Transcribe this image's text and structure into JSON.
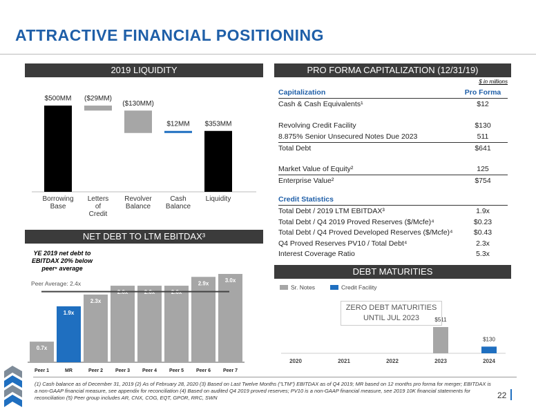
{
  "header": {
    "title": "ATTRACTIVE FINANCIAL POSITIONING"
  },
  "chart_data": [
    {
      "type": "waterfall",
      "title": "2019 LIQUIDITY",
      "categories": [
        "Borrowing Base",
        "Letters of Credit",
        "Revolver Balance",
        "Cash Balance",
        "Liquidity"
      ],
      "values": [
        500,
        -29,
        -130,
        12,
        353
      ],
      "value_labels": [
        "$500MM",
        "($29MM)",
        "($130MM)",
        "$12MM",
        "$353MM"
      ],
      "colors": [
        "#000000",
        "#a6a6a6",
        "#a6a6a6",
        "#1f6fc0",
        "#000000"
      ]
    },
    {
      "type": "bar",
      "title": "NET DEBT TO LTM EBITDAX³",
      "annotation": "YE 2019 net debt to EBITDAX 20% below peer⁵ average",
      "categories": [
        "Peer 1",
        "MR",
        "Peer 2",
        "Peer 3",
        "Peer 4",
        "Peer 5",
        "Peer 6",
        "Peer 7"
      ],
      "values": [
        0.7,
        1.9,
        2.3,
        2.6,
        2.6,
        2.6,
        2.9,
        3.0
      ],
      "value_labels": [
        "0.7x",
        "1.9x",
        "2.3x",
        "2.6x",
        "2.6x",
        "2.6x",
        "2.9x",
        "3.0x"
      ],
      "colors": [
        "#a6a6a6",
        "#1f6fc0",
        "#a6a6a6",
        "#a6a6a6",
        "#a6a6a6",
        "#a6a6a6",
        "#a6a6a6",
        "#a6a6a6"
      ],
      "reference_line": {
        "value": 2.4,
        "label": "Peer Average: 2.4x"
      }
    },
    {
      "type": "stacked-bar",
      "title": "DEBT MATURITIES",
      "annotation": "ZERO DEBT MATURITIES UNTIL JUL 2023",
      "categories": [
        "2020",
        "2021",
        "2022",
        "2023",
        "2024"
      ],
      "series": [
        {
          "name": "Sr. Notes",
          "color": "#a6a6a6",
          "values": [
            0,
            0,
            0,
            511,
            0
          ],
          "value_labels": [
            null,
            null,
            null,
            "$511",
            null
          ]
        },
        {
          "name": "Credit Facility",
          "color": "#1f6fc0",
          "values": [
            0,
            0,
            0,
            0,
            130
          ],
          "value_labels": [
            null,
            null,
            null,
            null,
            "$130"
          ]
        }
      ]
    }
  ],
  "table": {
    "title": "PRO FORMA CAPITALIZATION (12/31/19)",
    "unit_note": "$ in millions",
    "columns": [
      "Capitalization",
      "Pro Forma"
    ],
    "groups": [
      [
        [
          "Cash & Cash Equivalents¹",
          "$12"
        ]
      ],
      [
        [
          "Revolving Credit Facility",
          "$130"
        ],
        [
          "8.875% Senior Unsecured Notes Due 2023",
          "511"
        ],
        [
          "Total Debt",
          "$641"
        ]
      ],
      [
        [
          "Market Value of Equity²",
          "125"
        ],
        [
          "Enterprise Value²",
          "$754"
        ]
      ]
    ],
    "stats_title": "Credit Statistics",
    "stats_rows": [
      [
        "Total Debt / 2019 LTM EBITDAX³",
        "1.9x"
      ],
      [
        "Total Debt / Q4 2019 Proved Reserves ($/Mcfe)⁴",
        "$0.23"
      ],
      [
        "Total Debt / Q4 Proved Developed Reserves ($/Mcfe)⁴",
        "$0.43"
      ],
      [
        "Q4 Proved Reserves PV10 / Total Debt⁴",
        "2.3x"
      ],
      [
        "Interest Coverage Ratio",
        "5.3x"
      ]
    ]
  },
  "footnote": "(1) Cash balance as of December 31, 2019 (2) As of February 28, 2020 (3) Based on Last Twelve Months (\"LTM\") EBITDAX as of Q4 2019; MR based on 12 months pro forma for merger; EBITDAX is a non-GAAP financial measure, see appendix for reconciliation (4) Based on audited Q4 2019 proved reserves; PV10 is a non-GAAP financial measure, see 2019 10K financial statements for reconciliation (5) Peer group includes AR, CNX, COG, EQT, GPOR, RRC, SWN",
  "page_number": 22
}
